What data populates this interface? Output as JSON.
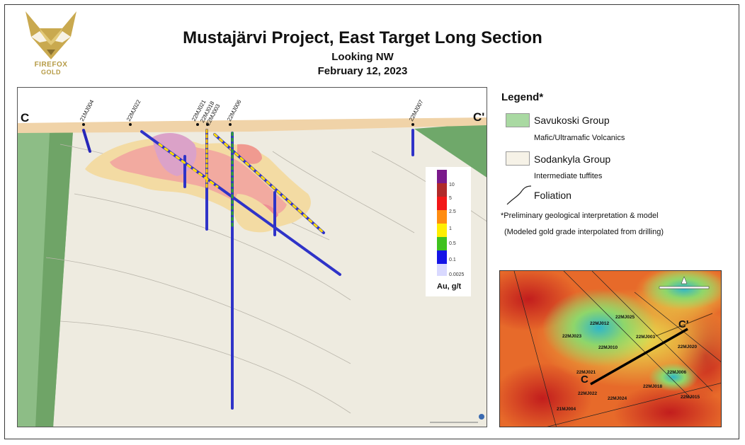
{
  "logo": {
    "line1": "FIREFOX",
    "line2": "GOLD"
  },
  "header": {
    "title": "Mustajärvi Project, East Target Long Section",
    "subtitle": "Looking NW",
    "date": "February 12, 2023"
  },
  "section": {
    "end_left": "C",
    "end_right": "C'",
    "drillholes": [
      "21MJ004",
      "22MJ022",
      "22MJ021",
      "22MJ018",
      "22MJ003",
      "22MJ006",
      "22MJ007"
    ]
  },
  "colorbar": {
    "title": "Au, g/t",
    "ticks": [
      "10",
      "5",
      "2.5",
      "1",
      "0.5",
      "0.1",
      "0.0025"
    ],
    "colors": [
      "#7a1a8a",
      "#b02a2a",
      "#f21818",
      "#ff8c10",
      "#ffee00",
      "#3fc21e",
      "#1414e6",
      "#d9d9ff"
    ]
  },
  "legend": {
    "title": "Legend*",
    "items": [
      {
        "label": "Savukoski Group",
        "sub": "Mafic/Ultramafic Volcanics",
        "color": "#a9d9a2"
      },
      {
        "label": "Sodankyla Group",
        "sub": "Intermediate tuffites",
        "color": "#f6f2e7"
      },
      {
        "label": "Foliation"
      }
    ],
    "note1": "*Preliminary geological interpretation & model",
    "note2": "(Modeled gold grade interpolated from drilling)"
  },
  "inset": {
    "end_left": "C",
    "end_right": "C'",
    "holes": [
      "22MJ025",
      "22MJ012",
      "22MJ023",
      "22MJ003",
      "22MJ010",
      "22MJ020",
      "22MJ021",
      "22MJ006",
      "22MJ018",
      "22MJ022",
      "22MJ024",
      "22MJ015",
      "21MJ004"
    ]
  }
}
